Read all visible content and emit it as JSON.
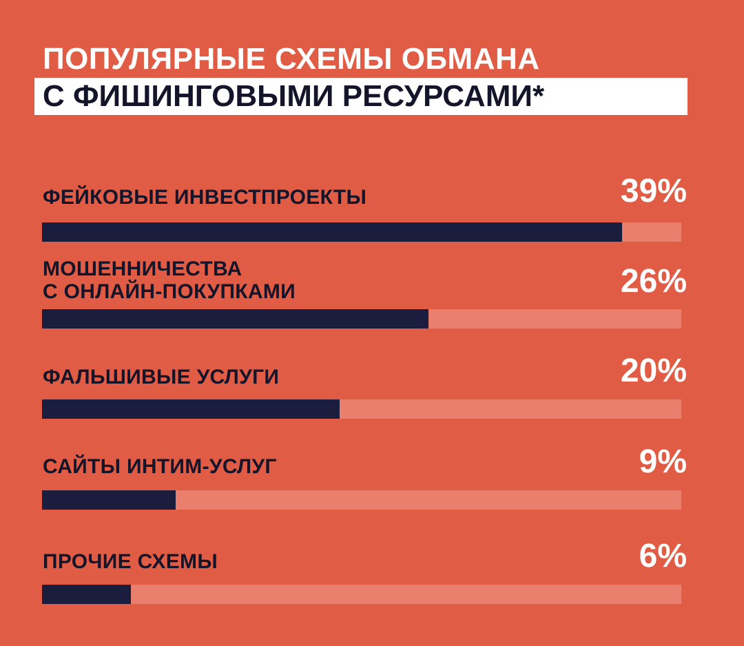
{
  "title": {
    "line1": "ПОПУЛЯРНЫЕ СХЕМЫ ОБМАНА",
    "line2": "С ФИШИНГОВЫМИ РЕСУРСАМИ*"
  },
  "colors": {
    "background": "#e05c44",
    "bar_fill": "#1a1d3e",
    "bar_track": "#e97f6c",
    "label_text": "#14142a",
    "value_text": "#ffffff"
  },
  "chart_data": {
    "type": "bar",
    "orientation": "horizontal",
    "title": "ПОПУЛЯРНЫЕ СХЕМЫ ОБМАНА С ФИШИНГОВЫМИ РЕСУРСАМИ*",
    "xlim": [
      0,
      43
    ],
    "categories": [
      "ФЕЙКОВЫЕ ИНВЕСТПРОЕКТЫ",
      "МОШЕННИЧЕСТВА С ОНЛАЙН-ПОКУПКАМИ",
      "ФАЛЬШИВЫЕ УСЛУГИ",
      "САЙТЫ ИНТИМ-УСЛУГ",
      "ПРОЧИЕ СХЕМЫ"
    ],
    "values": [
      39,
      26,
      20,
      9,
      6
    ],
    "items": [
      {
        "label_lines": [
          "ФЕЙКОВЫЕ ИНВЕСТПРОЕКТЫ"
        ],
        "value": 39,
        "value_label": "39%"
      },
      {
        "label_lines": [
          "МОШЕННИЧЕСТВА",
          "С ОНЛАЙН-ПОКУПКАМИ"
        ],
        "value": 26,
        "value_label": "26%"
      },
      {
        "label_lines": [
          "ФАЛЬШИВЫЕ УСЛУГИ"
        ],
        "value": 20,
        "value_label": "20%"
      },
      {
        "label_lines": [
          "САЙТЫ ИНТИМ-УСЛУГ"
        ],
        "value": 9,
        "value_label": "9%"
      },
      {
        "label_lines": [
          "ПРОЧИЕ СХЕМЫ"
        ],
        "value": 6,
        "value_label": "6%"
      }
    ]
  }
}
